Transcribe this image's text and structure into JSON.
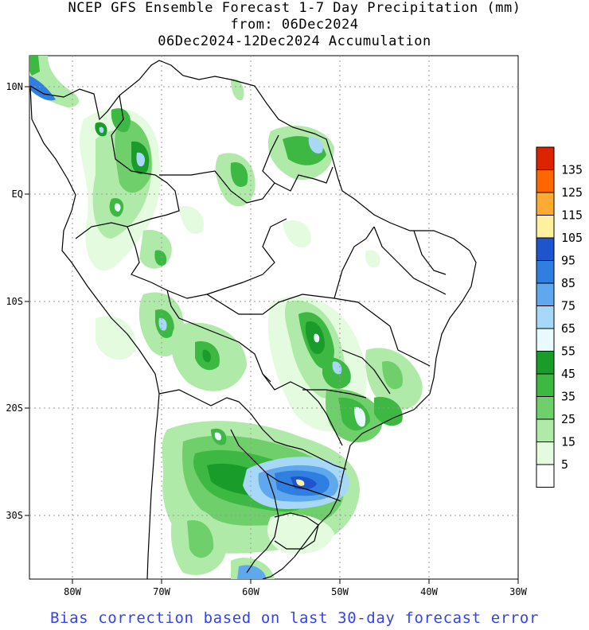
{
  "title": {
    "line1": "NCEP GFS Ensemble Forecast 1-7 Day Precipitation (mm)",
    "line2": "from: 06Dec2024",
    "line3": "06Dec2024-12Dec2024 Accumulation"
  },
  "axes": {
    "lon_ticks": [
      "80W",
      "70W",
      "60W",
      "50W",
      "40W",
      "30W"
    ],
    "lat_ticks": [
      "10N",
      "EQ",
      "10S",
      "20S",
      "30S"
    ]
  },
  "legend": {
    "levels": [
      "135",
      "125",
      "115",
      "105",
      "95",
      "85",
      "75",
      "65",
      "55",
      "45",
      "35",
      "25",
      "15",
      "5"
    ],
    "colors": [
      "#dd2200",
      "#ff6600",
      "#ffaa33",
      "#fff0a0",
      "#1e55cc",
      "#2f7fe0",
      "#5fa8ee",
      "#a8d8f8",
      "#e8fbff",
      "#1a9c2a",
      "#3cb843",
      "#6fd06b",
      "#b0eaa8",
      "#e4fbe0",
      "#ffffff"
    ]
  },
  "footer": "Bias correction based on last 30-day forecast error"
}
